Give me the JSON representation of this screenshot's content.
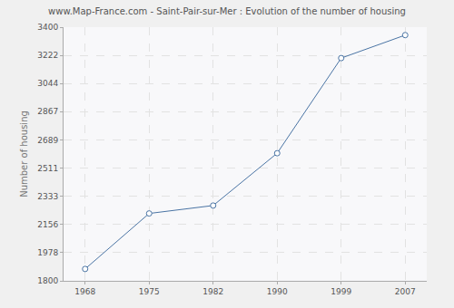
{
  "chart_data": {
    "type": "line",
    "title": "www.Map-France.com - Saint-Pair-sur-Mer : Evolution of the number of housing",
    "y_label": "Number of housing",
    "categories": [
      "1968",
      "1975",
      "1982",
      "1990",
      "1999",
      "2007"
    ],
    "values": [
      1875,
      2225,
      2275,
      2605,
      3205,
      3350
    ],
    "color": "#4a74a4",
    "marker": "circle",
    "ylim": [
      1800,
      3400
    ],
    "yticks": [
      1800,
      1978,
      2156,
      2333,
      2511,
      2689,
      2867,
      3044,
      3222,
      3400
    ],
    "grid": true
  }
}
